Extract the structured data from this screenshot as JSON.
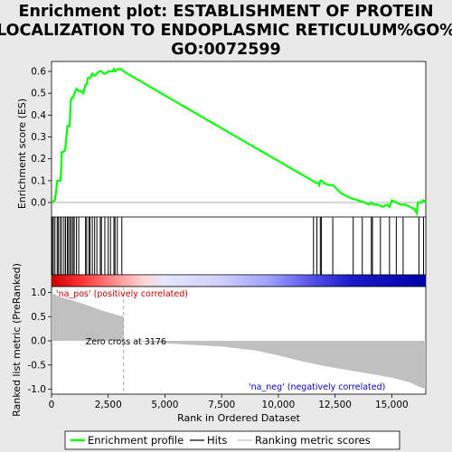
{
  "chart_data": {
    "type": "line",
    "title_lines": [
      "Enrichment plot: ESTABLISHMENT OF PROTEIN",
      "LOCALIZATION TO ENDOPLASMIC RETICULUM%GO%",
      "GO:0072599"
    ],
    "top_panel": {
      "ylabel": "Enrichment score (ES)",
      "ylim": [
        -0.07,
        0.64
      ],
      "yticks": [
        "0.0",
        "0.1",
        "0.2",
        "0.3",
        "0.4",
        "0.5",
        "0.6"
      ],
      "series": [
        {
          "name": "Enrichment profile",
          "color": "#00ff00",
          "x": [
            0,
            150,
            200,
            250,
            300,
            400,
            430,
            450,
            500,
            600,
            700,
            720,
            740,
            800,
            850,
            900,
            950,
            1050,
            1100,
            1200,
            1300,
            1400,
            1500,
            1550,
            1600,
            1700,
            1800,
            1900,
            2000,
            2100,
            2200,
            2300,
            2400,
            2500,
            2600,
            2700,
            2750,
            2800,
            2900,
            3000,
            3100,
            3176,
            5000,
            8000,
            10000,
            11000,
            11500,
            11650,
            11750,
            11800,
            11850,
            11900,
            12000,
            12200,
            12400,
            12600,
            12800,
            13000,
            13200,
            13500,
            13800,
            14000,
            14100,
            14200,
            14400,
            14600,
            14800,
            14900,
            15000,
            15200,
            15400,
            15600,
            15800,
            16000,
            16100,
            16150,
            16200,
            16300,
            16400,
            16500
          ],
          "y": [
            0.0,
            0.01,
            0.05,
            0.1,
            0.1,
            0.1,
            0.16,
            0.23,
            0.23,
            0.24,
            0.35,
            0.35,
            0.35,
            0.35,
            0.47,
            0.48,
            0.48,
            0.51,
            0.52,
            0.51,
            0.51,
            0.5,
            0.54,
            0.54,
            0.57,
            0.57,
            0.59,
            0.58,
            0.59,
            0.6,
            0.6,
            0.59,
            0.59,
            0.6,
            0.6,
            0.6,
            0.61,
            0.6,
            0.61,
            0.61,
            0.61,
            0.6,
            0.49,
            0.31,
            0.19,
            0.13,
            0.1,
            0.09,
            0.09,
            0.08,
            0.1,
            0.1,
            0.09,
            0.08,
            0.08,
            0.06,
            0.04,
            0.03,
            0.02,
            0.01,
            0.0,
            -0.01,
            0.0,
            -0.01,
            -0.01,
            -0.02,
            -0.01,
            -0.02,
            0.01,
            0.0,
            -0.01,
            -0.01,
            -0.02,
            -0.03,
            -0.05,
            0.0,
            0.0,
            0.0,
            0.01,
            0.0
          ]
        }
      ]
    },
    "hits": [
      30,
      80,
      150,
      250,
      300,
      380,
      450,
      550,
      620,
      700,
      750,
      820,
      880,
      950,
      1000,
      1100,
      1200,
      1500,
      1550,
      1650,
      1700,
      1800,
      1900,
      2000,
      2150,
      2200,
      2350,
      2500,
      2600,
      2750,
      2800,
      2900,
      3100,
      11550,
      11700,
      11850,
      11900,
      12400,
      13300,
      13700,
      14100,
      14150,
      14500,
      14900,
      15200,
      15500,
      16200,
      16400
    ],
    "bottom_panel": {
      "ylabel": "Ranked list metric (PreRanked)",
      "xlabel": "Rank in Ordered Dataset",
      "ylim": [
        -1.1,
        1.1
      ],
      "yticks": [
        "-1.0",
        "-0.5",
        "0.0",
        "0.5",
        "1.0"
      ],
      "xlim": [
        0,
        16500
      ],
      "xticks": [
        "0",
        "2,500",
        "5,000",
        "7,500",
        "10,000",
        "12,500",
        "15,000"
      ],
      "metric_x": [
        0,
        300,
        800,
        1500,
        2200,
        2800,
        3176,
        3176,
        5000,
        7500,
        9000,
        10000,
        11000,
        12000,
        13000,
        14000,
        15000,
        15800,
        16200,
        16500
      ],
      "metric_y": [
        1.0,
        0.92,
        0.85,
        0.75,
        0.63,
        0.55,
        0.5,
        0.0,
        -0.05,
        -0.12,
        -0.2,
        -0.3,
        -0.42,
        -0.52,
        -0.6,
        -0.68,
        -0.76,
        -0.86,
        -0.95,
        -1.0
      ],
      "zero_cross_label": "Zero cross at 3176",
      "pos_label": "'na_pos' (positively correlated)",
      "neg_label": "'na_neg' (negatively correlated)"
    },
    "legend": [
      "Enrichment profile",
      "Hits",
      "Ranking metric scores"
    ]
  }
}
